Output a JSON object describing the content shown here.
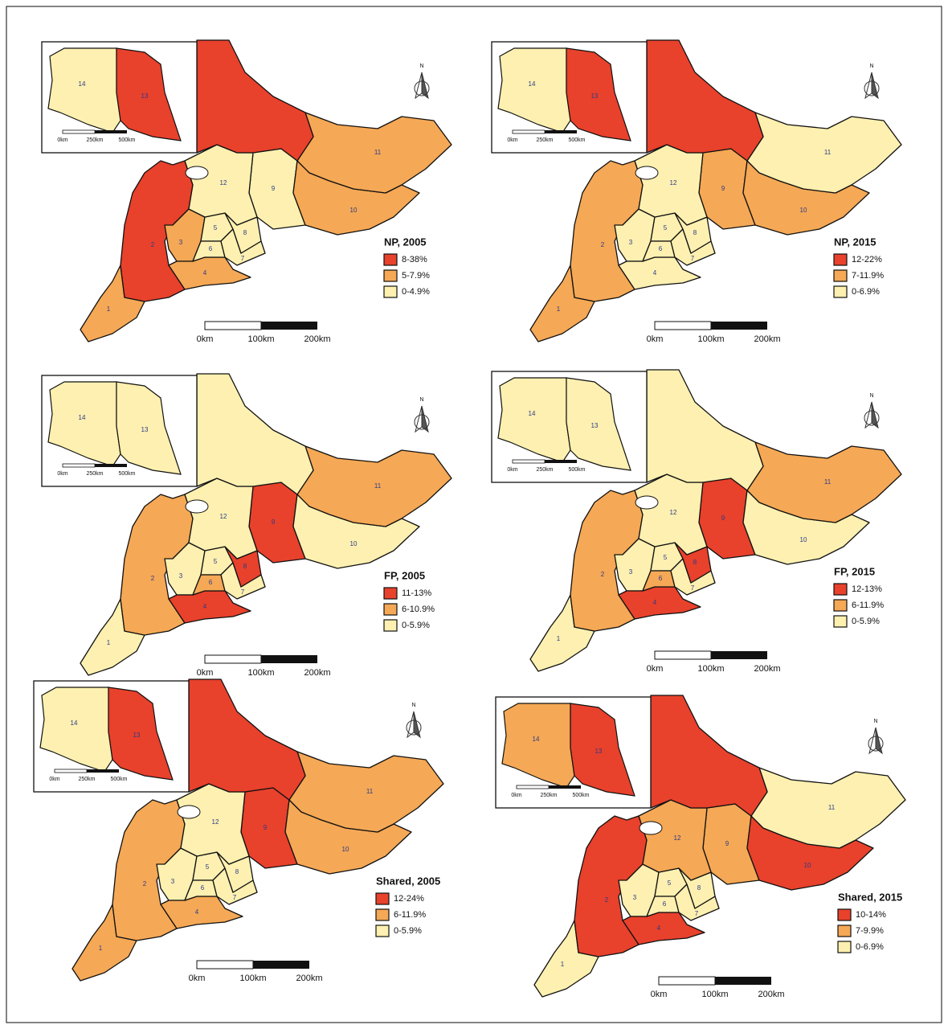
{
  "north": "N",
  "scale_bar": [
    "0km",
    "100km",
    "200km"
  ],
  "inset_scale_bar": [
    "0km",
    "250km",
    "500km"
  ],
  "maps": [
    {
      "title": "NP, 2005",
      "legend": [
        {
          "label": "8-38%",
          "color": "#e8412c"
        },
        {
          "label": "5-7.9%",
          "color": "#f5a855"
        },
        {
          "label": "0-4.9%",
          "color": "#fdf0b0"
        }
      ],
      "regions": [
        {
          "label": "1",
          "color": "#f5a855"
        },
        {
          "label": "2",
          "color": "#e8412c"
        },
        {
          "label": "3",
          "color": "#f5a855"
        },
        {
          "label": "4",
          "color": "#f5a855"
        },
        {
          "label": "5",
          "color": "#fdf0b0"
        },
        {
          "label": "6",
          "color": "#fdf0b0"
        },
        {
          "label": "7",
          "color": "#fdf0b0"
        },
        {
          "label": "8",
          "color": "#fdf0b0"
        },
        {
          "label": "9",
          "color": "#fdf0b0"
        },
        {
          "label": "10",
          "color": "#f5a855"
        },
        {
          "label": "11",
          "color": "#f5a855"
        },
        {
          "label": "12",
          "color": "#fdf0b0"
        },
        {
          "label": "13",
          "color": "#e8412c"
        },
        {
          "label": "14",
          "color": "#fdf0b0"
        }
      ]
    },
    {
      "title": "NP, 2015",
      "legend": [
        {
          "label": "12-22%",
          "color": "#e8412c"
        },
        {
          "label": "7-11.9%",
          "color": "#f5a855"
        },
        {
          "label": "0-6.9%",
          "color": "#fdf0b0"
        }
      ],
      "regions": [
        {
          "label": "1",
          "color": "#f5a855"
        },
        {
          "label": "2",
          "color": "#f5a855"
        },
        {
          "label": "3",
          "color": "#fdf0b0"
        },
        {
          "label": "4",
          "color": "#fdf0b0"
        },
        {
          "label": "5",
          "color": "#fdf0b0"
        },
        {
          "label": "6",
          "color": "#fdf0b0"
        },
        {
          "label": "7",
          "color": "#fdf0b0"
        },
        {
          "label": "8",
          "color": "#fdf0b0"
        },
        {
          "label": "9",
          "color": "#f5a855"
        },
        {
          "label": "10",
          "color": "#f5a855"
        },
        {
          "label": "11",
          "color": "#fdf0b0"
        },
        {
          "label": "12",
          "color": "#fdf0b0"
        },
        {
          "label": "13",
          "color": "#e8412c"
        },
        {
          "label": "14",
          "color": "#fdf0b0"
        }
      ]
    },
    {
      "title": "FP, 2005",
      "legend": [
        {
          "label": "11-13%",
          "color": "#e8412c"
        },
        {
          "label": "6-10.9%",
          "color": "#f5a855"
        },
        {
          "label": "0-5.9%",
          "color": "#fdf0b0"
        }
      ],
      "regions": [
        {
          "label": "1",
          "color": "#fdf0b0"
        },
        {
          "label": "2",
          "color": "#f5a855"
        },
        {
          "label": "3",
          "color": "#fdf0b0"
        },
        {
          "label": "4",
          "color": "#e8412c"
        },
        {
          "label": "5",
          "color": "#fdf0b0"
        },
        {
          "label": "6",
          "color": "#f5a855"
        },
        {
          "label": "7",
          "color": "#fdf0b0"
        },
        {
          "label": "8",
          "color": "#e8412c"
        },
        {
          "label": "9",
          "color": "#e8412c"
        },
        {
          "label": "10",
          "color": "#fdf0b0"
        },
        {
          "label": "11",
          "color": "#f5a855"
        },
        {
          "label": "12",
          "color": "#fdf0b0"
        },
        {
          "label": "13",
          "color": "#fdf0b0"
        },
        {
          "label": "14",
          "color": "#fdf0b0"
        }
      ]
    },
    {
      "title": "FP, 2015",
      "legend": [
        {
          "label": "12-13%",
          "color": "#e8412c"
        },
        {
          "label": "6-11.9%",
          "color": "#f5a855"
        },
        {
          "label": "0-5.9%",
          "color": "#fdf0b0"
        }
      ],
      "regions": [
        {
          "label": "1",
          "color": "#fdf0b0"
        },
        {
          "label": "2",
          "color": "#f5a855"
        },
        {
          "label": "3",
          "color": "#fdf0b0"
        },
        {
          "label": "4",
          "color": "#e8412c"
        },
        {
          "label": "5",
          "color": "#fdf0b0"
        },
        {
          "label": "6",
          "color": "#f5a855"
        },
        {
          "label": "7",
          "color": "#fdf0b0"
        },
        {
          "label": "8",
          "color": "#e8412c"
        },
        {
          "label": "9",
          "color": "#e8412c"
        },
        {
          "label": "10",
          "color": "#fdf0b0"
        },
        {
          "label": "11",
          "color": "#f5a855"
        },
        {
          "label": "12",
          "color": "#fdf0b0"
        },
        {
          "label": "13",
          "color": "#fdf0b0"
        },
        {
          "label": "14",
          "color": "#fdf0b0"
        }
      ]
    },
    {
      "title": "Shared, 2005",
      "legend": [
        {
          "label": "12-24%",
          "color": "#e8412c"
        },
        {
          "label": "6-11.9%",
          "color": "#f5a855"
        },
        {
          "label": "0-5.9%",
          "color": "#fdf0b0"
        }
      ],
      "regions": [
        {
          "label": "1",
          "color": "#f5a855"
        },
        {
          "label": "2",
          "color": "#f5a855"
        },
        {
          "label": "3",
          "color": "#fdf0b0"
        },
        {
          "label": "4",
          "color": "#f5a855"
        },
        {
          "label": "5",
          "color": "#fdf0b0"
        },
        {
          "label": "6",
          "color": "#fdf0b0"
        },
        {
          "label": "7",
          "color": "#fdf0b0"
        },
        {
          "label": "8",
          "color": "#fdf0b0"
        },
        {
          "label": "9",
          "color": "#e8412c"
        },
        {
          "label": "10",
          "color": "#f5a855"
        },
        {
          "label": "11",
          "color": "#f5a855"
        },
        {
          "label": "12",
          "color": "#fdf0b0"
        },
        {
          "label": "13",
          "color": "#e8412c"
        },
        {
          "label": "14",
          "color": "#fdf0b0"
        }
      ]
    },
    {
      "title": "Shared, 2015",
      "legend": [
        {
          "label": "10-14%",
          "color": "#e8412c"
        },
        {
          "label": "7-9.9%",
          "color": "#f5a855"
        },
        {
          "label": "0-6.9%",
          "color": "#fdf0b0"
        }
      ],
      "regions": [
        {
          "label": "1",
          "color": "#fdf0b0"
        },
        {
          "label": "2",
          "color": "#e8412c"
        },
        {
          "label": "3",
          "color": "#fdf0b0"
        },
        {
          "label": "4",
          "color": "#e8412c"
        },
        {
          "label": "5",
          "color": "#fdf0b0"
        },
        {
          "label": "6",
          "color": "#fdf0b0"
        },
        {
          "label": "7",
          "color": "#fdf0b0"
        },
        {
          "label": "8",
          "color": "#fdf0b0"
        },
        {
          "label": "9",
          "color": "#f5a855"
        },
        {
          "label": "10",
          "color": "#e8412c"
        },
        {
          "label": "11",
          "color": "#fdf0b0"
        },
        {
          "label": "12",
          "color": "#f5a855"
        },
        {
          "label": "13",
          "color": "#e8412c"
        },
        {
          "label": "14",
          "color": "#f5a855"
        }
      ]
    }
  ]
}
